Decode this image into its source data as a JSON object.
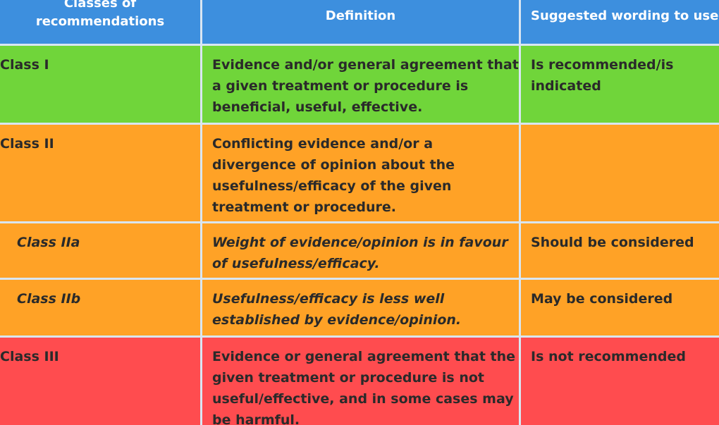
{
  "header": {
    "col1": "Classes of recommendations",
    "col2": "Definition",
    "col3": "Suggested wording to use"
  },
  "rows": [
    {
      "class": "Class I",
      "definition": "Evidence and/or general agreement that a given treatment or procedure is beneficial, useful, effective.",
      "wording": "Is recommended/is indicated",
      "color": "#70d53a"
    },
    {
      "class": "Class II",
      "definition": "Conflicting evidence and/or a divergence of opinion about the usefulness/efficacy of the given treatment or procedure.",
      "wording": "",
      "color": "#ffa226"
    },
    {
      "class": "Class IIa",
      "definition": "Weight of evidence/opinion is in favour of usefulness/efficacy.",
      "wording": "Should be considered",
      "color": "#ffa226"
    },
    {
      "class": "Class IIb",
      "definition": "Usefulness/efficacy is less well established by evidence/opinion.",
      "wording": "May be considered",
      "color": "#ffa226"
    },
    {
      "class": "Class III",
      "definition": "Evidence or general agreement that the given treatment or procedure is not useful/effective, and in some cases may be harmful.",
      "wording": "Is not recommended",
      "color": "#ff4c4f"
    }
  ]
}
